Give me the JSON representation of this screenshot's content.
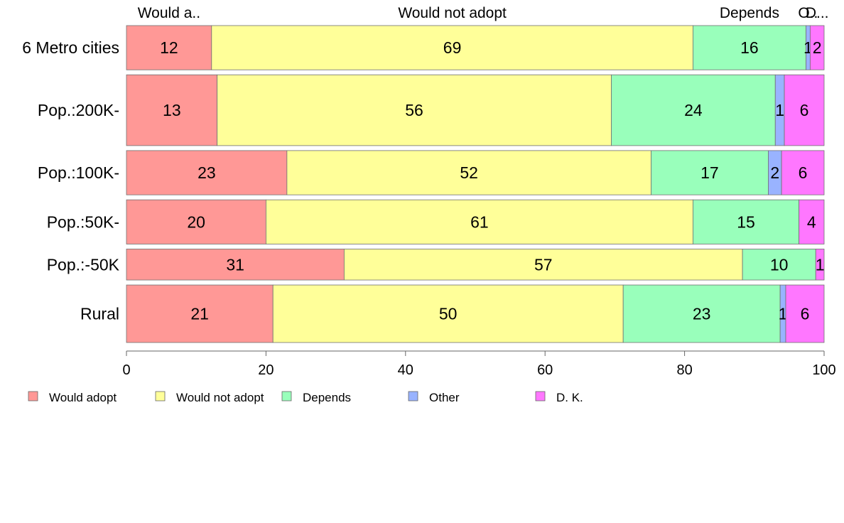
{
  "chart_data": {
    "type": "bar",
    "orientation": "horizontal",
    "stacked": true,
    "title": "",
    "xlabel": "",
    "ylabel": "",
    "xlim": [
      0,
      100
    ],
    "x_ticks": [
      "0",
      "20",
      "40",
      "60",
      "80",
      "100"
    ],
    "grid": false,
    "legend_position": "bottom-left",
    "categories": [
      "6 Metro cities",
      "Pop.:200K-",
      "Pop.:100K-",
      "Pop.:50K-",
      "Pop.:-50K",
      "Rural"
    ],
    "category_weights": [
      1.0,
      1.6,
      1.0,
      1.0,
      0.7,
      1.3
    ],
    "top_labels": [
      "Would a..",
      "Would not adopt",
      "Depends",
      "O..",
      "D..."
    ],
    "series": [
      {
        "name": "Would adopt",
        "color": "#ff9896",
        "values": [
          12.2,
          13.0,
          23.0,
          20.0,
          31.2,
          21.0
        ],
        "labels": [
          "12",
          "13",
          "23",
          "20",
          "31",
          "21"
        ]
      },
      {
        "name": "Would not adopt",
        "color": "#ffff99",
        "values": [
          69.0,
          56.5,
          52.2,
          61.2,
          57.1,
          50.2
        ],
        "labels": [
          "69",
          "56",
          "52",
          "61",
          "57",
          "50"
        ]
      },
      {
        "name": "Depends",
        "color": "#99ffbb",
        "values": [
          16.2,
          23.5,
          16.8,
          15.2,
          10.5,
          22.5
        ],
        "labels": [
          "16",
          "24",
          "17",
          "15",
          "10",
          "23"
        ]
      },
      {
        "name": "Other",
        "color": "#99b3ff",
        "values": [
          0.6,
          1.3,
          1.9,
          0.0,
          0.0,
          0.8
        ],
        "labels": [
          "1",
          "1",
          "2",
          "",
          "",
          "1"
        ]
      },
      {
        "name": "D. K.",
        "color": "#ff77ff",
        "values": [
          2.0,
          5.7,
          6.1,
          3.6,
          1.2,
          5.5
        ],
        "labels": [
          "2",
          "6",
          "6",
          "4",
          "1",
          "6"
        ]
      }
    ]
  }
}
